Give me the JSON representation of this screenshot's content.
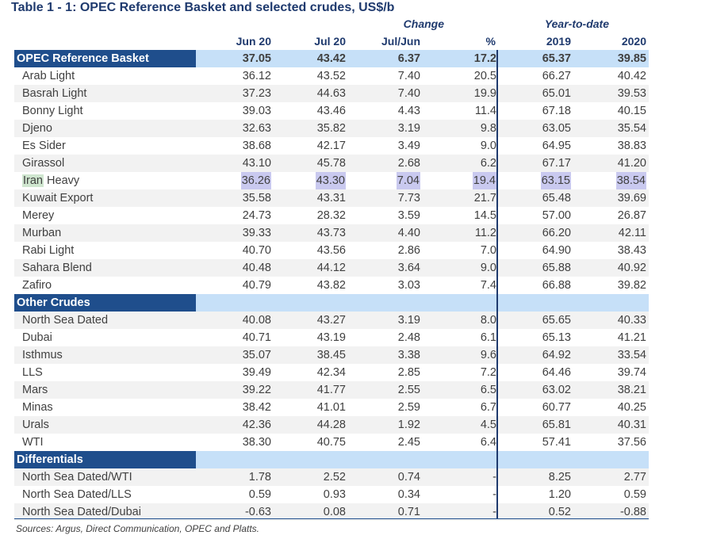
{
  "title": "Table 1 - 1: OPEC Reference Basket and selected crudes, US$/b",
  "headers": {
    "change_group": "Change",
    "ytd_group": "Year-to-date",
    "col1": "Jun 20",
    "col2": "Jul 20",
    "col3": "Jul/Jun",
    "col4": "%",
    "col5": "2019",
    "col6": "2020"
  },
  "basket": {
    "label": "OPEC Reference Basket",
    "values": [
      "37.05",
      "43.42",
      "6.37",
      "17.2",
      "65.37",
      "39.85"
    ]
  },
  "basket_rows": [
    {
      "label": "Arab Light",
      "values": [
        "36.12",
        "43.52",
        "7.40",
        "20.5",
        "66.27",
        "40.42"
      ]
    },
    {
      "label": "Basrah Light",
      "values": [
        "37.23",
        "44.63",
        "7.40",
        "19.9",
        "65.01",
        "39.53"
      ]
    },
    {
      "label": "Bonny Light",
      "values": [
        "39.03",
        "43.46",
        "4.43",
        "11.4",
        "67.18",
        "40.15"
      ]
    },
    {
      "label": "Djeno",
      "values": [
        "32.63",
        "35.82",
        "3.19",
        "9.8",
        "63.05",
        "35.54"
      ]
    },
    {
      "label": "Es Sider",
      "values": [
        "38.68",
        "42.17",
        "3.49",
        "9.0",
        "64.95",
        "38.83"
      ]
    },
    {
      "label": "Girassol",
      "values": [
        "43.10",
        "45.78",
        "2.68",
        "6.2",
        "67.17",
        "41.20"
      ]
    },
    {
      "label_a": "Iran",
      "label_b": " Heavy",
      "values": [
        "36.26",
        "43.30",
        "7.04",
        "19.4",
        "63.15",
        "38.54"
      ]
    },
    {
      "label": "Kuwait Export",
      "values": [
        "35.58",
        "43.31",
        "7.73",
        "21.7",
        "65.48",
        "39.69"
      ]
    },
    {
      "label": "Merey",
      "values": [
        "24.73",
        "28.32",
        "3.59",
        "14.5",
        "57.00",
        "26.87"
      ]
    },
    {
      "label": "Murban",
      "values": [
        "39.33",
        "43.73",
        "4.40",
        "11.2",
        "66.20",
        "42.11"
      ]
    },
    {
      "label": "Rabi Light",
      "values": [
        "40.70",
        "43.56",
        "2.86",
        "7.0",
        "64.90",
        "38.43"
      ]
    },
    {
      "label": "Sahara Blend",
      "values": [
        "40.48",
        "44.12",
        "3.64",
        "9.0",
        "65.88",
        "40.92"
      ]
    },
    {
      "label": "Zafiro",
      "values": [
        "40.79",
        "43.82",
        "3.03",
        "7.4",
        "66.88",
        "39.82"
      ]
    }
  ],
  "other": {
    "label": "Other Crudes",
    "rows": [
      {
        "label": "North Sea Dated",
        "values": [
          "40.08",
          "43.27",
          "3.19",
          "8.0",
          "65.65",
          "40.33"
        ]
      },
      {
        "label": "Dubai",
        "values": [
          "40.71",
          "43.19",
          "2.48",
          "6.1",
          "65.13",
          "41.21"
        ]
      },
      {
        "label": "Isthmus",
        "values": [
          "35.07",
          "38.45",
          "3.38",
          "9.6",
          "64.92",
          "33.54"
        ]
      },
      {
        "label": "LLS",
        "values": [
          "39.49",
          "42.34",
          "2.85",
          "7.2",
          "64.46",
          "39.74"
        ]
      },
      {
        "label": "Mars",
        "values": [
          "39.22",
          "41.77",
          "2.55",
          "6.5",
          "63.02",
          "38.21"
        ]
      },
      {
        "label": "Minas",
        "values": [
          "38.42",
          "41.01",
          "2.59",
          "6.7",
          "60.77",
          "40.25"
        ]
      },
      {
        "label": "Urals",
        "values": [
          "42.36",
          "44.28",
          "1.92",
          "4.5",
          "65.81",
          "40.31"
        ]
      },
      {
        "label": "WTI",
        "values": [
          "38.30",
          "40.75",
          "2.45",
          "6.4",
          "57.41",
          "37.56"
        ]
      }
    ]
  },
  "diff": {
    "label": "Differentials",
    "rows": [
      {
        "label": "North Sea Dated/WTI",
        "values": [
          "1.78",
          "2.52",
          "0.74",
          "-",
          "8.25",
          "2.77"
        ]
      },
      {
        "label": "North Sea Dated/LLS",
        "values": [
          "0.59",
          "0.93",
          "0.34",
          "-",
          "1.20",
          "0.59"
        ]
      },
      {
        "label": "North Sea Dated/Dubai",
        "values": [
          "-0.63",
          "0.08",
          "0.71",
          "-",
          "0.52",
          "-0.88"
        ]
      }
    ]
  },
  "source": "Sources:  Argus, Direct Communication, OPEC and Platts."
}
